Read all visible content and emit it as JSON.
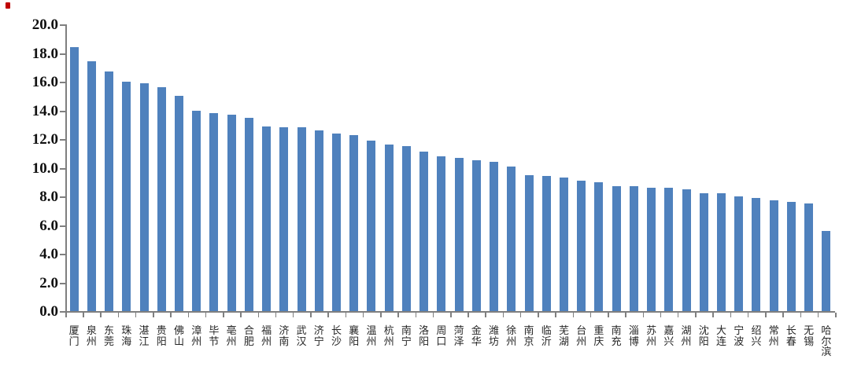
{
  "page": {
    "background": "#ffffff",
    "corner_mark_color": "#c00000"
  },
  "chart_data": {
    "type": "bar",
    "title": "",
    "xlabel": "",
    "ylabel": "",
    "legend": "none",
    "grid": "off",
    "ylim": [
      0,
      20
    ],
    "ytick_step": 2,
    "ytick_decimals": 1,
    "ytick_labels": [
      "0.0",
      "2.0",
      "4.0",
      "6.0",
      "8.0",
      "10.0",
      "12.0",
      "14.0",
      "16.0",
      "18.0",
      "20.0"
    ],
    "bar_color": "#4f81bd",
    "axis_color": "#7f7f7f",
    "categories": [
      "厦门",
      "泉州",
      "东莞",
      "珠海",
      "湛江",
      "贵阳",
      "佛山",
      "漳州",
      "毕节",
      "亳州",
      "合肥",
      "福州",
      "济南",
      "武汉",
      "济宁",
      "长沙",
      "襄阳",
      "温州",
      "杭州",
      "南宁",
      "洛阳",
      "周口",
      "菏泽",
      "金华",
      "潍坊",
      "徐州",
      "南京",
      "临沂",
      "芜湖",
      "台州",
      "重庆",
      "南充",
      "淄博",
      "苏州",
      "嘉兴",
      "湖州",
      "沈阳",
      "大连",
      "宁波",
      "绍兴",
      "常州",
      "长春",
      "无锡",
      "哈尔滨"
    ],
    "values": [
      18.4,
      17.4,
      16.7,
      16.0,
      15.9,
      15.6,
      15.0,
      14.0,
      13.8,
      13.7,
      13.5,
      12.9,
      12.8,
      12.8,
      12.6,
      12.4,
      12.3,
      11.9,
      11.6,
      11.5,
      11.1,
      10.8,
      10.7,
      10.5,
      10.4,
      10.1,
      9.5,
      9.4,
      9.3,
      9.1,
      9.0,
      8.7,
      8.7,
      8.6,
      8.6,
      8.5,
      8.2,
      8.2,
      8.0,
      7.9,
      7.7,
      7.6,
      7.5,
      5.6
    ]
  },
  "layout_note": "horizontal bar chart of 44 Chinese cities, descending values, y axis 0.0 to 20.0"
}
